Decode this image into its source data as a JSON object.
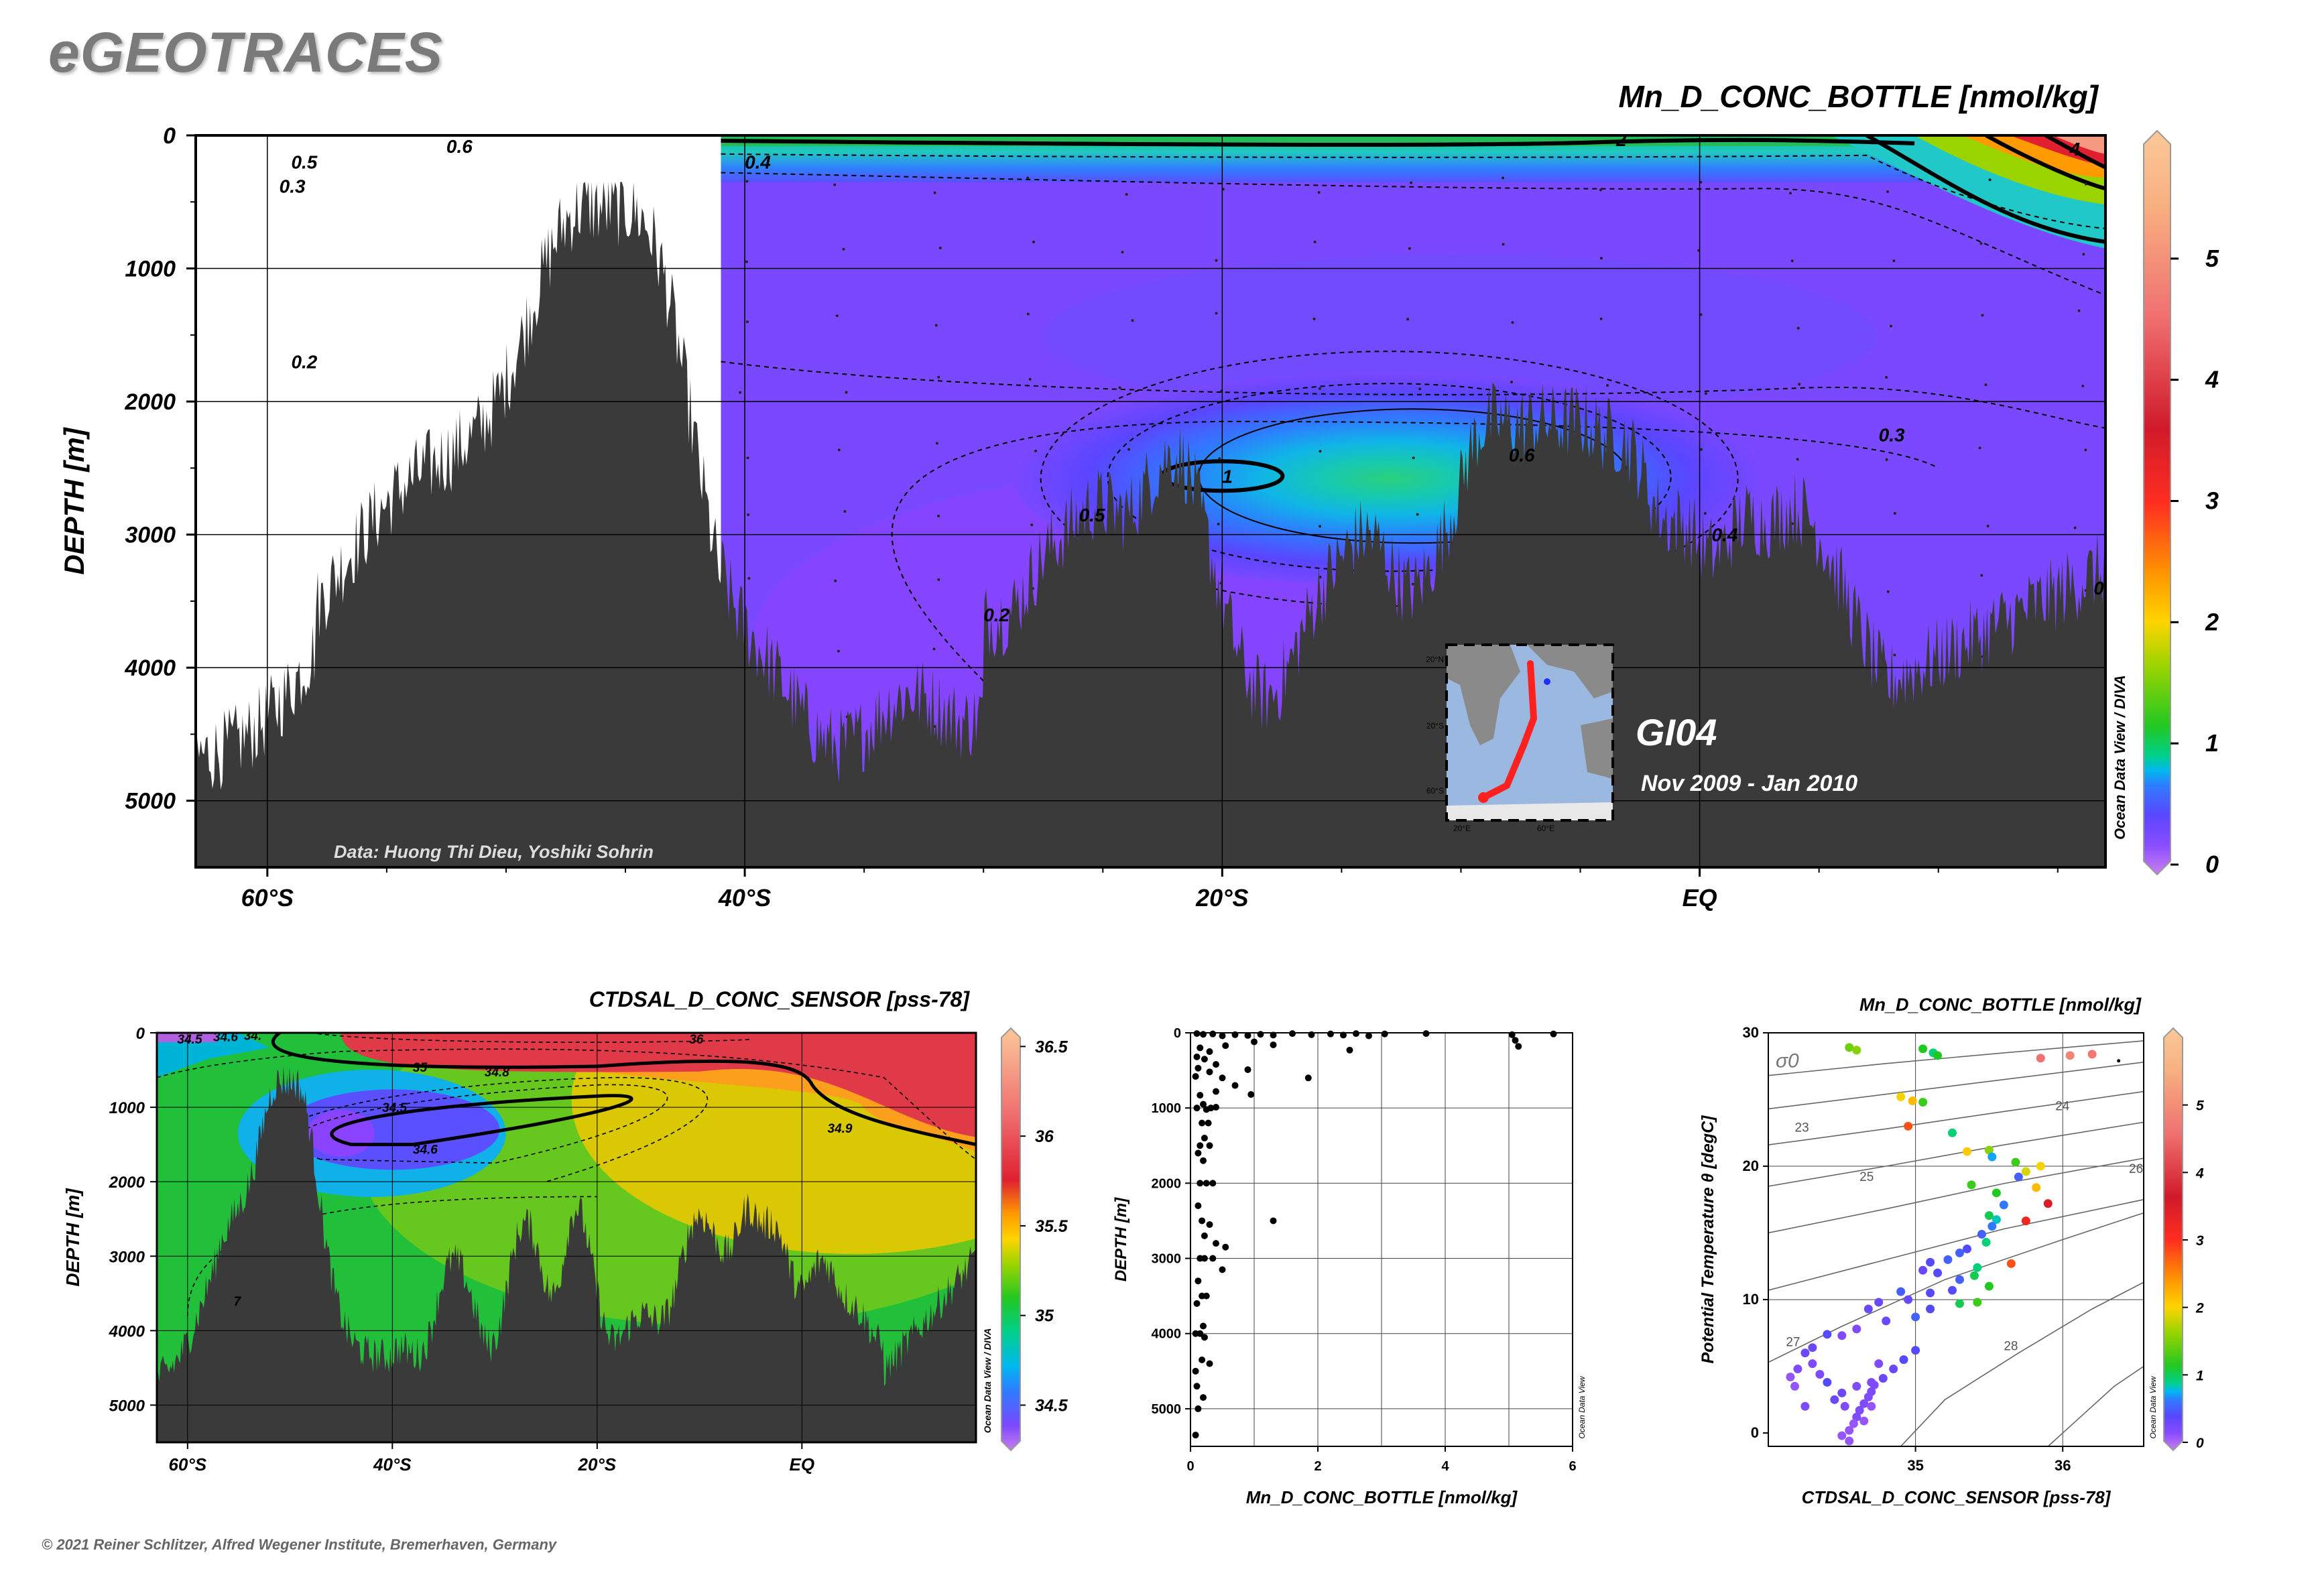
{
  "header": {
    "logo": "eGEOTRACES",
    "copyright": "© 2021 Reiner Schlitzer, Alfred Wegener Institute, Bremerhaven, Germany"
  },
  "chart_data": [
    {
      "id": "main-section",
      "type": "heatmap",
      "title": "Mn_D_CONC_BOTTLE [nmol/kg]",
      "ylabel": "DEPTH [m]",
      "xlabel": "",
      "xlim": [
        -63,
        17
      ],
      "ylim": [
        5500,
        0
      ],
      "x_ticks": [
        -60,
        -40,
        -20,
        0
      ],
      "x_tick_labels": [
        "60°S",
        "40°S",
        "20°S",
        "EQ"
      ],
      "y_ticks": [
        0,
        1000,
        2000,
        3000,
        4000,
        5000
      ],
      "y_tick_labels": [
        "0",
        "1000",
        "2000",
        "3000",
        "4000",
        "5000"
      ],
      "colorbar": {
        "min": 0,
        "max": 6,
        "ticks": [
          0,
          1,
          2,
          3,
          4,
          5
        ],
        "tick_labels": [
          "0",
          "1",
          "2",
          "3",
          "4",
          "5"
        ]
      },
      "contour_labels": [
        {
          "text": "0.6",
          "x": -52.5,
          "depth": 80
        },
        {
          "text": "0.5",
          "x": -59,
          "depth": 200
        },
        {
          "text": "0.4",
          "x": -40,
          "depth": 200
        },
        {
          "text": "0.3",
          "x": -59.5,
          "depth": 380
        },
        {
          "text": "0.2",
          "x": -59,
          "depth": 1700
        },
        {
          "text": "1",
          "x": -20,
          "depth": 2560
        },
        {
          "text": "0.6",
          "x": -8,
          "depth": 2400
        },
        {
          "text": "0.5",
          "x": -26,
          "depth": 2850
        },
        {
          "text": "0.3",
          "x": 7.5,
          "depth": 2250
        },
        {
          "text": "0.4",
          "x": 0.5,
          "depth": 3000
        },
        {
          "text": "0.2",
          "x": -30,
          "depth": 3600
        },
        {
          "text": "2",
          "x": -3.5,
          "depth": 30
        },
        {
          "text": "4",
          "x": 15.5,
          "depth": 100
        },
        {
          "text": "0.",
          "x": 16.5,
          "depth": 3400
        }
      ],
      "annotations": {
        "credit": "Data: Huong Thi Dieu, Yoshiki Sohrin",
        "cruise": "GI04",
        "dates": "Nov 2009 - Jan 2010",
        "odv_side": "Ocean Data View / DIVA"
      },
      "inset_map": {
        "lat_labels": [
          "20°N",
          "20°S",
          "60°S"
        ],
        "lon_labels": [
          "20°E",
          "60°E"
        ],
        "track_color": "#ff2020"
      },
      "palette": [
        "#c880f0",
        "#8a4cff",
        "#5a46ff",
        "#2e7cff",
        "#00b8f0",
        "#00d08a",
        "#22c822",
        "#9ad400",
        "#ffd400",
        "#ff9a00",
        "#ff2d20",
        "#d01a2a",
        "#f07070",
        "#f8b080",
        "#fbc898"
      ],
      "land_color": "#3a3a3a"
    },
    {
      "id": "salinity-section",
      "type": "heatmap",
      "title": "CTDSAL_D_CONC_SENSOR [pss-78]",
      "ylabel": "DEPTH [m]",
      "xlabel": "",
      "xlim": [
        -63,
        17
      ],
      "ylim": [
        5500,
        0
      ],
      "x_ticks": [
        -60,
        -40,
        -20,
        0
      ],
      "x_tick_labels": [
        "60°S",
        "40°S",
        "20°S",
        "EQ"
      ],
      "y_ticks": [
        0,
        1000,
        2000,
        3000,
        4000,
        5000
      ],
      "y_tick_labels": [
        "0",
        "1000",
        "2000",
        "3000",
        "4000",
        "5000"
      ],
      "colorbar": {
        "ticks": [
          34.5,
          35,
          35.5,
          36,
          36.5
        ],
        "tick_labels": [
          "34.5",
          "35",
          "35.5",
          "36",
          "36.5"
        ]
      },
      "contour_labels": [
        {
          "text": "34.5",
          "x": -61,
          "depth": 80
        },
        {
          "text": "34.6",
          "x": -57.5,
          "depth": 50
        },
        {
          "text": "34.",
          "x": -54.5,
          "depth": 30
        },
        {
          "text": "36",
          "x": -11,
          "depth": 80
        },
        {
          "text": "35",
          "x": -38,
          "depth": 460
        },
        {
          "text": "34.8",
          "x": -31,
          "depth": 520
        },
        {
          "text": "34.5",
          "x": -41,
          "depth": 1000
        },
        {
          "text": "34.6",
          "x": -38,
          "depth": 1560
        },
        {
          "text": "34.9",
          "x": 2.5,
          "depth": 1280
        },
        {
          "text": "7",
          "x": -55.5,
          "depth": 3600
        }
      ],
      "annotations": {
        "odv_side": "Ocean Data View / DIVA"
      }
    },
    {
      "id": "profile-scatter",
      "type": "scatter",
      "title": "",
      "xlabel": "Mn_D_CONC_BOTTLE [nmol/kg]",
      "ylabel": "DEPTH [m]",
      "xlim": [
        0,
        6
      ],
      "ylim": [
        5500,
        0
      ],
      "x_ticks": [
        0,
        2,
        4,
        6
      ],
      "x_tick_labels": [
        "0",
        "2",
        "4",
        "6"
      ],
      "y_ticks": [
        0,
        1000,
        2000,
        3000,
        4000,
        5000
      ],
      "y_tick_labels": [
        "0",
        "1000",
        "2000",
        "3000",
        "4000",
        "5000"
      ],
      "annotations": {
        "odv_side": "Ocean Data View"
      },
      "points": [
        [
          0.1,
          10
        ],
        [
          0.2,
          20
        ],
        [
          0.35,
          15
        ],
        [
          0.5,
          40
        ],
        [
          0.7,
          25
        ],
        [
          0.9,
          35
        ],
        [
          1.1,
          20
        ],
        [
          1.3,
          30
        ],
        [
          1.6,
          10
        ],
        [
          1.9,
          25
        ],
        [
          2.2,
          15
        ],
        [
          2.4,
          30
        ],
        [
          2.6,
          10
        ],
        [
          2.8,
          40
        ],
        [
          3.05,
          15
        ],
        [
          3.7,
          10
        ],
        [
          5.05,
          25
        ],
        [
          5.1,
          100
        ],
        [
          5.15,
          180
        ],
        [
          5.7,
          15
        ],
        [
          2.5,
          230
        ],
        [
          1.0,
          120
        ],
        [
          1.3,
          160
        ],
        [
          0.55,
          170
        ],
        [
          0.15,
          200
        ],
        [
          0.3,
          250
        ],
        [
          0.1,
          320
        ],
        [
          0.22,
          350
        ],
        [
          0.4,
          420
        ],
        [
          0.12,
          470
        ],
        [
          0.3,
          520
        ],
        [
          0.08,
          580
        ],
        [
          0.5,
          600
        ],
        [
          0.9,
          490
        ],
        [
          1.85,
          600
        ],
        [
          0.7,
          700
        ],
        [
          0.95,
          820
        ],
        [
          0.4,
          780
        ],
        [
          0.15,
          830
        ],
        [
          0.2,
          950
        ],
        [
          0.1,
          1000
        ],
        [
          0.25,
          1020
        ],
        [
          0.32,
          1000
        ],
        [
          0.4,
          990
        ],
        [
          0.18,
          1200
        ],
        [
          0.28,
          1200
        ],
        [
          0.22,
          1400
        ],
        [
          0.15,
          1500
        ],
        [
          0.3,
          1500
        ],
        [
          0.12,
          1600
        ],
        [
          0.2,
          1700
        ],
        [
          0.15,
          2000
        ],
        [
          0.25,
          2000
        ],
        [
          0.35,
          2000
        ],
        [
          0.12,
          2300
        ],
        [
          0.18,
          2500
        ],
        [
          0.3,
          2550
        ],
        [
          1.3,
          2500
        ],
        [
          0.22,
          2700
        ],
        [
          0.55,
          2850
        ],
        [
          0.4,
          2800
        ],
        [
          0.15,
          3000
        ],
        [
          0.22,
          3000
        ],
        [
          0.35,
          3000
        ],
        [
          0.5,
          3150
        ],
        [
          0.12,
          3300
        ],
        [
          0.18,
          3500
        ],
        [
          0.25,
          3500
        ],
        [
          0.1,
          3600
        ],
        [
          0.2,
          3900
        ],
        [
          0.08,
          4000
        ],
        [
          0.15,
          4000
        ],
        [
          0.22,
          4050
        ],
        [
          0.18,
          4350
        ],
        [
          0.08,
          4500
        ],
        [
          0.3,
          4400
        ],
        [
          0.1,
          4700
        ],
        [
          0.2,
          4850
        ],
        [
          0.12,
          5000
        ],
        [
          0.08,
          5350
        ]
      ]
    },
    {
      "id": "ts-diagram",
      "type": "scatter",
      "title": "Mn_D_CONC_BOTTLE [nmol/kg]",
      "xlabel": "CTDSAL_D_CONC_SENSOR [pss-78]",
      "ylabel": "Potential Temperature θ [degC]",
      "xlim": [
        34,
        36.55
      ],
      "ylim": [
        -1,
        30
      ],
      "x_ticks": [
        35,
        36
      ],
      "x_tick_labels": [
        "35",
        "36"
      ],
      "y_ticks": [
        0,
        10,
        20,
        30
      ],
      "y_tick_labels": [
        "0",
        "10",
        "20",
        "30"
      ],
      "sigma_label": "σ0",
      "isopycnal_labels": [
        "23",
        "24",
        "25",
        "26",
        "27",
        "28"
      ],
      "colorbar": {
        "min": 0,
        "max": 6,
        "ticks": [
          0,
          1,
          2,
          3,
          4,
          5
        ],
        "tick_labels": [
          "0",
          "1",
          "2",
          "3",
          "4",
          "5"
        ]
      },
      "annotations": {
        "odv_side": "Ocean Data View"
      },
      "points": [
        [
          34.55,
          28.9,
          1.5
        ],
        [
          34.6,
          28.7,
          1.6
        ],
        [
          35.05,
          28.8,
          1.2
        ],
        [
          35.12,
          28.5,
          1.0
        ],
        [
          35.15,
          28.3,
          1.2
        ],
        [
          35.85,
          28.1,
          4.5
        ],
        [
          36.05,
          28.3,
          4.8
        ],
        [
          36.2,
          28.4,
          4.6
        ],
        [
          36.38,
          27.9,
          0.1
        ],
        [
          34.9,
          25.2,
          2.0
        ],
        [
          34.98,
          24.9,
          2.2
        ],
        [
          35.05,
          24.8,
          1.3
        ],
        [
          34.95,
          23.0,
          2.8
        ],
        [
          35.25,
          22.5,
          1.0
        ],
        [
          35.35,
          21.1,
          2.1
        ],
        [
          35.5,
          21.2,
          1.6
        ],
        [
          35.52,
          20.7,
          0.8
        ],
        [
          35.68,
          20.3,
          1.3
        ],
        [
          35.85,
          20.0,
          2.0
        ],
        [
          35.75,
          19.6,
          1.9
        ],
        [
          35.7,
          19.2,
          0.6
        ],
        [
          35.82,
          18.4,
          2.2
        ],
        [
          35.38,
          18.6,
          1.3
        ],
        [
          35.55,
          18.0,
          1.2
        ],
        [
          35.9,
          17.2,
          3.5
        ],
        [
          35.6,
          17.1,
          0.7
        ],
        [
          35.5,
          16.3,
          1.1
        ],
        [
          35.55,
          16.0,
          0.9
        ],
        [
          35.52,
          15.5,
          0.7
        ],
        [
          35.75,
          15.9,
          3.2
        ],
        [
          35.45,
          14.9,
          0.6
        ],
        [
          35.48,
          14.3,
          1.0
        ],
        [
          35.35,
          13.8,
          0.5
        ],
        [
          35.3,
          13.5,
          0.6
        ],
        [
          35.22,
          13.0,
          0.6
        ],
        [
          35.1,
          12.8,
          0.5
        ],
        [
          35.05,
          12.2,
          0.4
        ],
        [
          35.15,
          12.0,
          0.5
        ],
        [
          35.42,
          12.4,
          1.0
        ],
        [
          35.65,
          12.7,
          2.8
        ],
        [
          35.4,
          11.8,
          1.1
        ],
        [
          35.3,
          11.5,
          0.6
        ],
        [
          35.5,
          11.0,
          1.2
        ],
        [
          35.25,
          10.7,
          0.5
        ],
        [
          35.1,
          10.5,
          0.5
        ],
        [
          34.95,
          10.0,
          0.4
        ],
        [
          34.9,
          10.6,
          0.6
        ],
        [
          34.75,
          9.8,
          0.4
        ],
        [
          34.68,
          9.3,
          0.4
        ],
        [
          35.42,
          9.8,
          1.3
        ],
        [
          35.3,
          9.7,
          1.1
        ],
        [
          35.1,
          9.3,
          0.5
        ],
        [
          35.0,
          8.7,
          0.6
        ],
        [
          34.8,
          8.4,
          0.4
        ],
        [
          34.6,
          7.8,
          0.3
        ],
        [
          34.5,
          7.3,
          0.3
        ],
        [
          34.4,
          7.4,
          0.5
        ],
        [
          34.3,
          6.4,
          0.4
        ],
        [
          34.25,
          6.0,
          0.4
        ],
        [
          35.0,
          6.2,
          0.5
        ],
        [
          34.92,
          5.5,
          0.5
        ],
        [
          34.85,
          4.8,
          0.4
        ],
        [
          34.78,
          4.1,
          0.4
        ],
        [
          34.72,
          3.6,
          0.3
        ],
        [
          34.7,
          3.1,
          0.3
        ],
        [
          34.68,
          2.7,
          0.3
        ],
        [
          34.65,
          2.2,
          0.3
        ],
        [
          34.62,
          1.7,
          0.3
        ],
        [
          34.6,
          1.2,
          0.3
        ],
        [
          34.58,
          0.7,
          0.2
        ],
        [
          34.55,
          0.2,
          0.2
        ],
        [
          34.5,
          -0.2,
          0.2
        ],
        [
          34.65,
          0.9,
          0.2
        ],
        [
          34.7,
          2.0,
          0.2
        ],
        [
          34.7,
          3.8,
          0.3
        ],
        [
          34.75,
          5.2,
          0.3
        ],
        [
          34.6,
          3.5,
          0.3
        ],
        [
          34.52,
          2.0,
          0.3
        ],
        [
          34.5,
          3.0,
          0.4
        ],
        [
          34.45,
          2.5,
          0.4
        ],
        [
          34.4,
          3.8,
          0.5
        ],
        [
          34.35,
          4.4,
          0.3
        ],
        [
          34.3,
          5.2,
          0.3
        ],
        [
          34.2,
          4.8,
          0.3
        ],
        [
          34.18,
          3.5,
          0.2
        ],
        [
          34.15,
          4.2,
          0.2
        ],
        [
          34.25,
          2.0,
          0.3
        ],
        [
          34.55,
          -0.6,
          0.2
        ]
      ]
    }
  ]
}
